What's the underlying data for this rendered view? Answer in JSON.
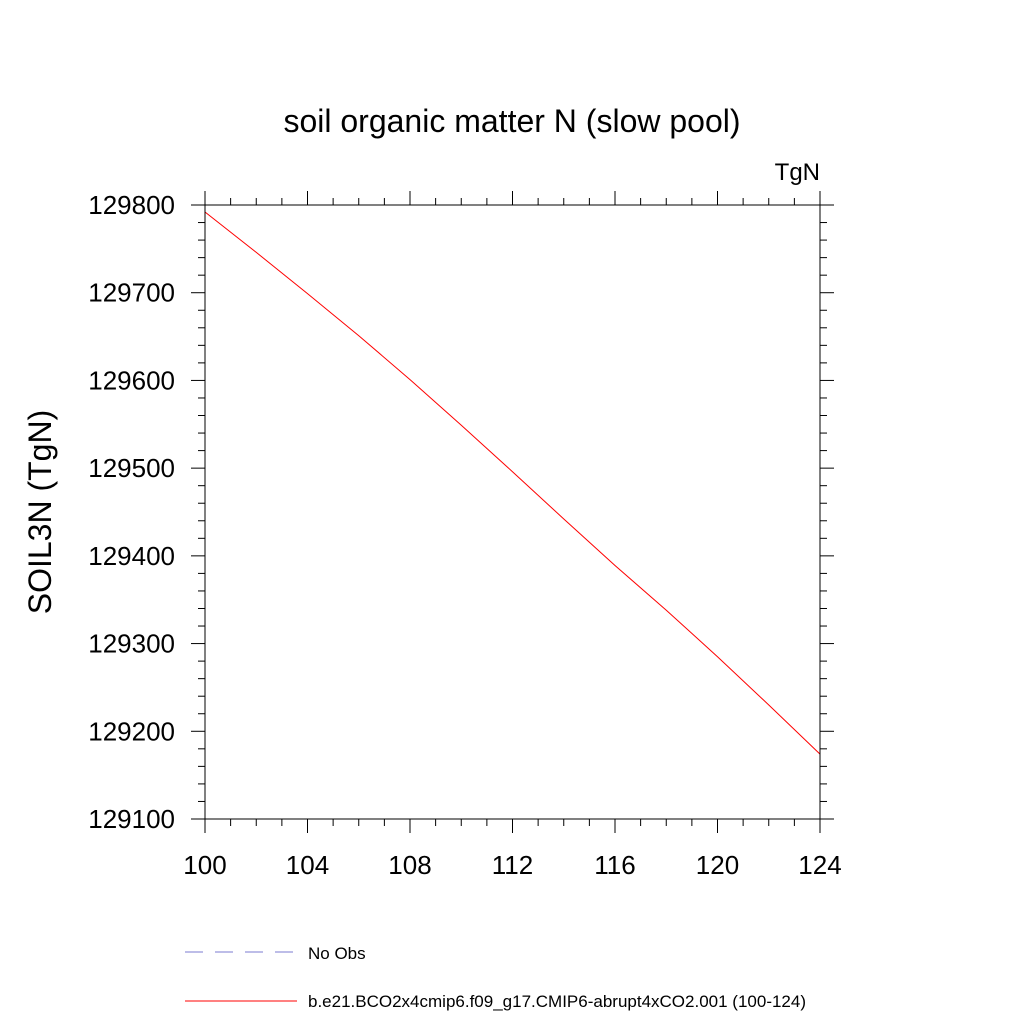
{
  "chart_data": {
    "type": "line",
    "title": "soil organic matter N (slow pool)",
    "units_label": "TgN",
    "ylabel": "SOIL3N  (TgN)",
    "xlabel": "",
    "xlim": [
      100,
      124
    ],
    "ylim": [
      129100,
      129800
    ],
    "x_ticks": [
      100,
      104,
      108,
      112,
      116,
      120,
      124
    ],
    "y_ticks": [
      129100,
      129200,
      129300,
      129400,
      129500,
      129600,
      129700,
      129800
    ],
    "grid": false,
    "legend_position": "bottom",
    "legend": [
      {
        "label": "No Obs",
        "color": "#7b7bd0",
        "style": "dashed"
      },
      {
        "label": "b.e21.BCO2x4cmip6.f09_g17.CMIP6-abrupt4xCO2.001 (100-124)",
        "color": "#ff0000",
        "style": "solid"
      }
    ],
    "series": [
      {
        "color": "#ff0000",
        "x": [
          100,
          102,
          104,
          106,
          108,
          110,
          112,
          114,
          116,
          118,
          120,
          122,
          124
        ],
        "values": [
          129792,
          129746,
          129699,
          129651,
          129601,
          129549,
          129496,
          129442,
          129389,
          129338,
          129285,
          129230,
          129174
        ]
      }
    ]
  }
}
